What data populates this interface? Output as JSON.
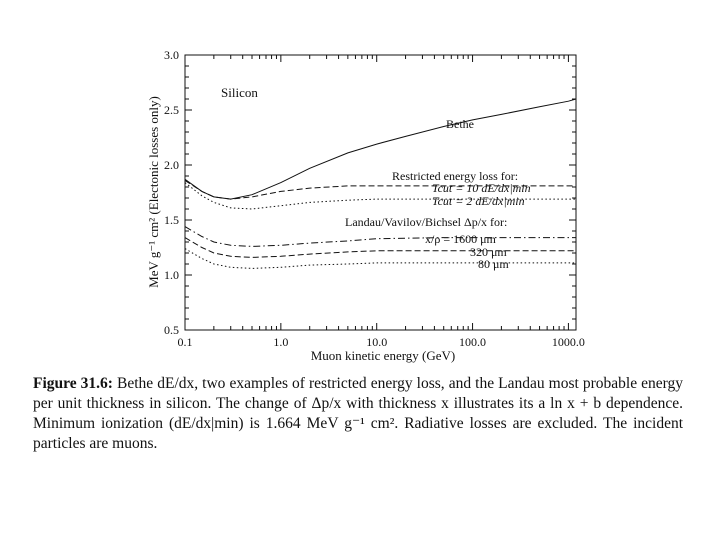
{
  "chart_data": {
    "type": "line",
    "panel_label": "Silicon",
    "xlabel": "Muon kinetic energy (GeV)",
    "ylabel": "MeV g⁻¹ cm² (Electonic losses only)",
    "xscale": "log",
    "xlim": [
      0.1,
      1200
    ],
    "ylim": [
      0.5,
      3.0
    ],
    "x_ticks": [
      0.1,
      1,
      10,
      100,
      1000
    ],
    "x_tick_labels": [
      "0.1",
      "1.0",
      "10.0",
      "100.0",
      "1000.0"
    ],
    "y_ticks": [
      0.5,
      1.0,
      1.5,
      2.0,
      2.5,
      3.0
    ],
    "y_tick_labels": [
      "0.5",
      "1.0",
      "1.5",
      "2.0",
      "2.5",
      "3.0"
    ],
    "annotations": {
      "restricted_header": "Restricted energy loss for:",
      "restricted_10": "Tcut = 10 dE/dx|min",
      "restricted_2": "Tcut = 2 dE/dx|min",
      "landau_header": "Landau/Vavilov/Bichsel Δp/x for:",
      "landau_1600": "x/ρ = 1600 μm",
      "landau_320": "320 μm",
      "landau_80": "80 μm"
    },
    "series": [
      {
        "name": "Bethe",
        "style": "solid",
        "x": [
          0.1,
          0.15,
          0.2,
          0.3,
          0.5,
          1,
          2,
          5,
          10,
          20,
          50,
          100,
          200,
          500,
          1000,
          1200
        ],
        "y": [
          1.87,
          1.76,
          1.71,
          1.69,
          1.73,
          1.84,
          1.97,
          2.11,
          2.19,
          2.26,
          2.35,
          2.41,
          2.46,
          2.53,
          2.58,
          2.6
        ]
      },
      {
        "name": "Tcut = 10 dE/dx|min",
        "style": "dashed",
        "x": [
          0.1,
          0.15,
          0.2,
          0.3,
          0.5,
          1,
          2,
          5,
          10,
          50,
          100,
          1000,
          1200
        ],
        "y": [
          1.86,
          1.76,
          1.71,
          1.69,
          1.71,
          1.76,
          1.79,
          1.81,
          1.81,
          1.81,
          1.81,
          1.81,
          1.81
        ]
      },
      {
        "name": "Tcut = 2 dE/dx|min",
        "style": "dotted",
        "x": [
          0.1,
          0.15,
          0.2,
          0.3,
          0.5,
          1,
          2,
          5,
          10,
          50,
          100,
          1000,
          1200
        ],
        "y": [
          1.84,
          1.72,
          1.66,
          1.61,
          1.6,
          1.63,
          1.66,
          1.68,
          1.69,
          1.69,
          1.69,
          1.69,
          1.69
        ]
      },
      {
        "name": "x/ρ = 1600 μm",
        "style": "dashdot",
        "x": [
          0.1,
          0.15,
          0.2,
          0.3,
          0.5,
          1,
          2,
          5,
          10,
          50,
          100,
          1000,
          1200
        ],
        "y": [
          1.44,
          1.35,
          1.3,
          1.27,
          1.26,
          1.27,
          1.29,
          1.31,
          1.33,
          1.34,
          1.34,
          1.34,
          1.34
        ]
      },
      {
        "name": "320 μm",
        "style": "dashed",
        "x": [
          0.1,
          0.15,
          0.2,
          0.3,
          0.5,
          1,
          2,
          5,
          10,
          50,
          100,
          1000,
          1200
        ],
        "y": [
          1.34,
          1.25,
          1.2,
          1.17,
          1.16,
          1.17,
          1.19,
          1.21,
          1.22,
          1.22,
          1.22,
          1.22,
          1.22
        ]
      },
      {
        "name": "80 μm",
        "style": "dotted",
        "x": [
          0.1,
          0.15,
          0.2,
          0.3,
          0.5,
          1,
          2,
          5,
          10,
          50,
          100,
          1000,
          1200
        ],
        "y": [
          1.24,
          1.15,
          1.1,
          1.07,
          1.06,
          1.07,
          1.09,
          1.1,
          1.11,
          1.11,
          1.11,
          1.11,
          1.11
        ]
      }
    ],
    "series_labels": {
      "bethe": "Bethe"
    }
  },
  "caption": {
    "label": "Figure 31.6:",
    "text": "Bethe dE/dx, two examples of restricted energy loss, and the Landau most probable energy per unit thickness in silicon. The change of Δp/x with thickness x illustrates its a ln x + b dependence. Minimum ionization (dE/dx|min) is 1.664 MeV g⁻¹ cm². Radiative losses are excluded. The incident particles are muons."
  }
}
